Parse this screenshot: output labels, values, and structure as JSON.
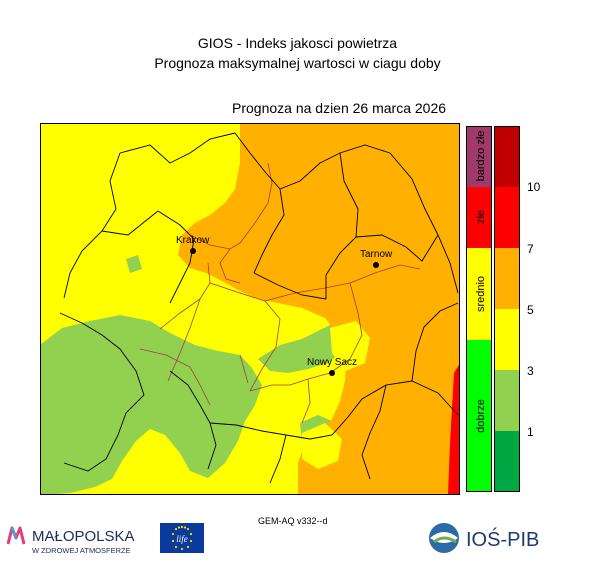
{
  "header": {
    "title_line1": "GIOS - Indeks jakosci powietrza",
    "title_line2": "Prognoza maksymalnej wartosci w ciagu doby",
    "forecast_date": "Prognoza na dzien  26 marca 2026"
  },
  "map": {
    "cities": [
      {
        "name": "Krakow"
      },
      {
        "name": "Tarnow"
      },
      {
        "name": "Nowy Sacz"
      }
    ]
  },
  "legend": {
    "categories": [
      {
        "label": "bardzo złe",
        "color": "#a03a6b"
      },
      {
        "label": "złe",
        "color": "#ff0000"
      },
      {
        "label": "srednio",
        "color": "#ffff00"
      },
      {
        "label": "dobrze",
        "color": "#00ff00"
      }
    ],
    "scale_colors": [
      "#00a843",
      "#92d050",
      "#ffff00",
      "#ffb000",
      "#ff0000",
      "#c00000"
    ],
    "scale_labels": [
      "1",
      "3",
      "5",
      "7",
      "10"
    ]
  },
  "colors": {
    "yellow": "#ffff00",
    "orange": "#ffb000",
    "green": "#92d050",
    "red": "#ff0000"
  },
  "footer": {
    "model": "GEM-AQ v332--d",
    "logo_malopolska": "MAŁOPOLSKA",
    "logo_malopolska_sub": "W ZDROWEJ ATMOSFERZE",
    "logo_eu_text": "life",
    "logo_ios": "IOŚ-PIB"
  }
}
